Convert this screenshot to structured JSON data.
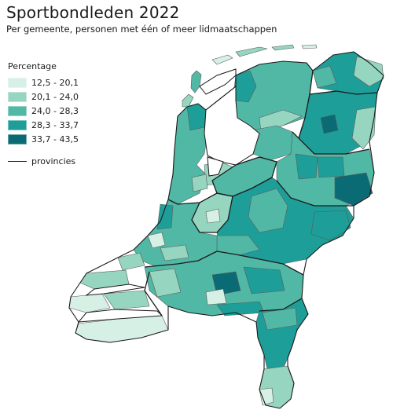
{
  "title": "Sportbondleden 2022",
  "subtitle": "Per gemeente, personen met één of meer lidmaatschappen",
  "legend": {
    "title": "Percentage",
    "classes": [
      {
        "label": "12,5 - 20,1",
        "color": "#d7f0e6"
      },
      {
        "label": "20,1 - 24,0",
        "color": "#96d6c0"
      },
      {
        "label": "24,0 - 28,3",
        "color": "#52b8a6"
      },
      {
        "label": "28,3 - 33,7",
        "color": "#1e9e98"
      },
      {
        "label": "33,7 - 43,5",
        "color": "#0b6b75"
      }
    ],
    "province_line_label": "provincies"
  },
  "colors": {
    "province_border": "#1a1a1a",
    "municipality_border": "#5a5a5a",
    "water": "#ffffff"
  }
}
